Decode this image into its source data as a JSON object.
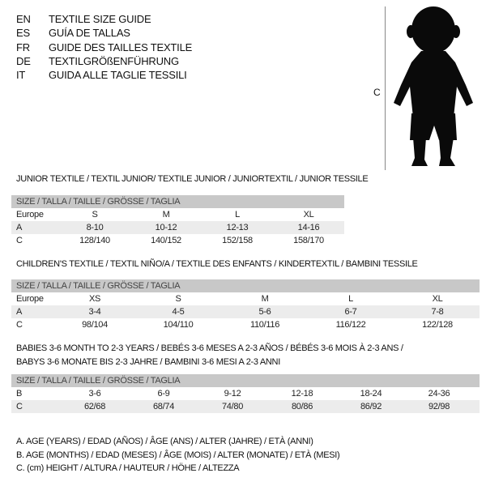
{
  "languages": [
    {
      "code": "EN",
      "title": "TEXTILE SIZE GUIDE"
    },
    {
      "code": "ES",
      "title": "GUÍA DE TALLAS"
    },
    {
      "code": "FR",
      "title": "GUIDE DES TAILLES TEXTILE"
    },
    {
      "code": "DE",
      "title": "TEXTILGRÖßENFÜHRUNG"
    },
    {
      "code": "IT",
      "title": "GUIDA ALLE TAGLIE TESSILI"
    }
  ],
  "figure": {
    "label": "C",
    "icon": "child-silhouette"
  },
  "size_header": "SIZE / TALLA / TAILLE / GRÖSSE / TAGLIA",
  "junior": {
    "title": "JUNIOR TEXTILE / TEXTIL JUNIOR/ TEXTILE JUNIOR / JUNIORTEXTIL / JUNIOR TESSILE",
    "rows": [
      {
        "label": "Europe",
        "values": [
          "S",
          "M",
          "L",
          "XL"
        ]
      },
      {
        "label": "A",
        "values": [
          "8-10",
          "10-12",
          "12-13",
          "14-16"
        ]
      },
      {
        "label": "C",
        "values": [
          "128/140",
          "140/152",
          "152/158",
          "158/170"
        ]
      }
    ]
  },
  "children": {
    "title": "CHILDREN'S TEXTILE / TEXTIL NIÑO/A / TEXTILE DES ENFANTS / KINDERTEXTIL / BAMBINI TESSILE",
    "rows": [
      {
        "label": "Europe",
        "values": [
          "XS",
          "S",
          "M",
          "L",
          "XL"
        ]
      },
      {
        "label": "A",
        "values": [
          "3-4",
          "4-5",
          "5-6",
          "6-7",
          "7-8"
        ]
      },
      {
        "label": "C",
        "values": [
          "98/104",
          "104/110",
          "110/116",
          "116/122",
          "122/128"
        ]
      }
    ]
  },
  "babies": {
    "title_line1": "BABIES 3-6 MONTH TO 2-3 YEARS / BEBÉS 3-6 MESES A 2-3 AÑOS / BÉBÉS 3-6 MOIS À 2-3 ANS /",
    "title_line2": "BABYS 3-6 MONATE BIS 2-3 JAHRE / BAMBINI 3-6 MESI A 2-3 ANNI",
    "rows": [
      {
        "label": "B",
        "values": [
          "3-6",
          "6-9",
          "9-12",
          "12-18",
          "18-24",
          "24-36"
        ]
      },
      {
        "label": "C",
        "values": [
          "62/68",
          "68/74",
          "74/80",
          "80/86",
          "86/92",
          "92/98"
        ]
      }
    ]
  },
  "legend": [
    "A. AGE (YEARS) / EDAD (AÑOS) / ÂGE (ANS) / ALTER (JAHRE) / ETÀ (ANNI)",
    "B. AGE (MONTHS) / EDAD (MESES) / ÂGE (MOIS) / ALTER (MONATE) / ETÀ (MESI)",
    "C. (cm) HEIGHT / ALTURA / HAUTEUR / HÖHE / ALTEZZA"
  ]
}
